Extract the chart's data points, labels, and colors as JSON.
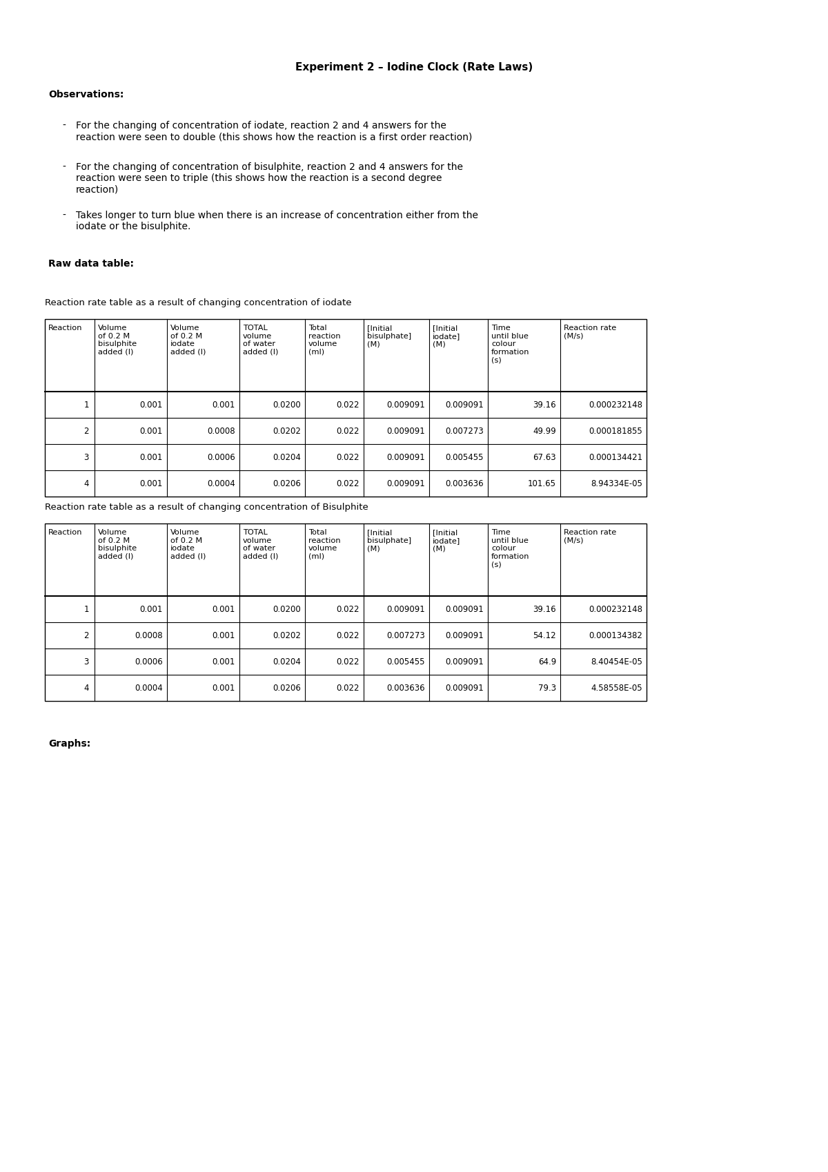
{
  "title": "Experiment 2 – Iodine Clock (Rate Laws)",
  "observations_label": "Observations:",
  "bullets": [
    "For the changing of concentration of iodate, reaction 2 and 4 answers for the\nreaction were seen to double (this shows how the reaction is a first order reaction)",
    "For the changing of concentration of bisulphite, reaction 2 and 4 answers for the\nreaction were seen to triple (this shows how the reaction is a second degree\nreaction)",
    "Takes longer to turn blue when there is an increase of concentration either from the\niodate or the bisulphite."
  ],
  "raw_data_label": "Raw data table:",
  "table1_title": "Reaction rate table as a result of changing concentration of iodate",
  "table2_title": "Reaction rate table as a result of changing concentration of Bisulphite",
  "graphs_label": "Graphs:",
  "col_headers": [
    "Reaction",
    "Volume\nof 0.2 M\nbisulphite\nadded (l)",
    "Volume\nof 0.2 M\niodate\nadded (l)",
    "TOTAL\nvolume\nof water\nadded (l)",
    "Total\nreaction\nvolume\n(ml)",
    "[Initial\nbisulphate]\n(M)",
    "[Initial\niodate]\n(M)",
    "Time\nuntil blue\ncolour\nformation\n(s)",
    "Reaction rate\n(M/s)"
  ],
  "table1_data": [
    [
      "1",
      "0.001",
      "0.001",
      "0.0200",
      "0.022",
      "0.009091",
      "0.009091",
      "39.16",
      "0.000232148"
    ],
    [
      "2",
      "0.001",
      "0.0008",
      "0.0202",
      "0.022",
      "0.009091",
      "0.007273",
      "49.99",
      "0.000181855"
    ],
    [
      "3",
      "0.001",
      "0.0006",
      "0.0204",
      "0.022",
      "0.009091",
      "0.005455",
      "67.63",
      "0.000134421"
    ],
    [
      "4",
      "0.001",
      "0.0004",
      "0.0206",
      "0.022",
      "0.009091",
      "0.003636",
      "101.65",
      "8.94334E-05"
    ]
  ],
  "table2_data": [
    [
      "1",
      "0.001",
      "0.001",
      "0.0200",
      "0.022",
      "0.009091",
      "0.009091",
      "39.16",
      "0.000232148"
    ],
    [
      "2",
      "0.0008",
      "0.001",
      "0.0202",
      "0.022",
      "0.007273",
      "0.009091",
      "54.12",
      "0.000134382"
    ],
    [
      "3",
      "0.0006",
      "0.001",
      "0.0204",
      "0.022",
      "0.005455",
      "0.009091",
      "64.9",
      "8.40454E-05"
    ],
    [
      "4",
      "0.0004",
      "0.001",
      "0.0206",
      "0.022",
      "0.003636",
      "0.009091",
      "79.3",
      "4.58558E-05"
    ]
  ],
  "background_color": "#ffffff",
  "text_color": "#000000",
  "font_size_title": 11,
  "font_size_body": 9,
  "font_size_table": 8.5
}
